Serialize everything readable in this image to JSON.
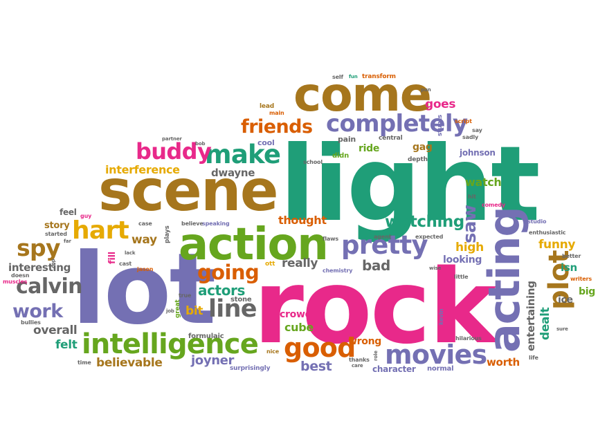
{
  "palette": {
    "green": "#1f9e78",
    "purple": "#7470b3",
    "pink": "#e8298a",
    "lime": "#66a61e",
    "orange": "#d95e02",
    "gold": "#e6aa03",
    "brown": "#a6761d",
    "gray": "#666666"
  },
  "words": [
    {
      "text": "light",
      "color": "#1f9e78"
    },
    {
      "text": "lot",
      "color": "#7470b3"
    },
    {
      "text": "rock",
      "color": "#e8298a"
    },
    {
      "text": "scene",
      "color": "#a6761d"
    },
    {
      "text": "come",
      "color": "#a6761d"
    },
    {
      "text": "action",
      "color": "#66a61e"
    },
    {
      "text": "acting",
      "color": "#7470b3"
    },
    {
      "text": "intelligence",
      "color": "#66a61e"
    },
    {
      "text": "pretty",
      "color": "#7470b3"
    },
    {
      "text": "completely",
      "color": "#7470b3"
    },
    {
      "text": "movies",
      "color": "#7470b3"
    },
    {
      "text": "make",
      "color": "#1f9e78"
    },
    {
      "text": "hart",
      "color": "#e6aa03"
    },
    {
      "text": "plot",
      "color": "#a6761d"
    },
    {
      "text": "line",
      "color": "#666666"
    },
    {
      "text": "good",
      "color": "#d95e02"
    },
    {
      "text": "buddy",
      "color": "#e8298a"
    },
    {
      "text": "friends",
      "color": "#d95e02"
    },
    {
      "text": "spy",
      "color": "#a6761d"
    },
    {
      "text": "calvin",
      "color": "#666666"
    },
    {
      "text": "going",
      "color": "#d95e02"
    },
    {
      "text": "watching",
      "color": "#1f9e78"
    },
    {
      "text": "work",
      "color": "#7470b3"
    },
    {
      "text": "saw",
      "color": "#7470b3"
    },
    {
      "text": "actors",
      "color": "#1f9e78"
    },
    {
      "text": "really",
      "color": "#666666"
    },
    {
      "text": "bad",
      "color": "#666666"
    },
    {
      "text": "interference",
      "color": "#e6aa03"
    },
    {
      "text": "dwayne",
      "color": "#666666"
    },
    {
      "text": "thought",
      "color": "#d95e02"
    },
    {
      "text": "believable",
      "color": "#a6761d"
    },
    {
      "text": "joyner",
      "color": "#7470b3"
    },
    {
      "text": "best",
      "color": "#7470b3"
    },
    {
      "text": "cube",
      "color": "#66a61e"
    },
    {
      "text": "crowd",
      "color": "#e8298a"
    },
    {
      "text": "bit",
      "color": "#e6aa03"
    },
    {
      "text": "felt",
      "color": "#1f9e78"
    },
    {
      "text": "overall",
      "color": "#666666"
    },
    {
      "text": "interesting",
      "color": "#666666"
    },
    {
      "text": "way",
      "color": "#a6761d"
    },
    {
      "text": "fill",
      "color": "#e8298a"
    },
    {
      "text": "story",
      "color": "#a6761d"
    },
    {
      "text": "feel",
      "color": "#666666"
    },
    {
      "text": "goes",
      "color": "#e8298a"
    },
    {
      "text": "watch",
      "color": "#66a61e"
    },
    {
      "text": "high",
      "color": "#e6aa03"
    },
    {
      "text": "looking",
      "color": "#7470b3"
    },
    {
      "text": "funny",
      "color": "#e6aa03"
    },
    {
      "text": "isn",
      "color": "#1f9e78"
    },
    {
      "text": "big",
      "color": "#66a61e"
    },
    {
      "text": "ice",
      "color": "#666666"
    },
    {
      "text": "dealt",
      "color": "#1f9e78"
    },
    {
      "text": "entertaining",
      "color": "#666666"
    },
    {
      "text": "worth",
      "color": "#d95e02"
    },
    {
      "text": "character",
      "color": "#7470b3"
    },
    {
      "text": "wrong",
      "color": "#d95e02"
    },
    {
      "text": "ride",
      "color": "#66a61e"
    },
    {
      "text": "gag",
      "color": "#a6761d"
    },
    {
      "text": "johnson",
      "color": "#7470b3"
    },
    {
      "text": "formulaic",
      "color": "#666666"
    },
    {
      "text": "stone",
      "color": "#666666"
    },
    {
      "text": "surprisingly",
      "color": "#7470b3"
    },
    {
      "text": "normal",
      "color": "#7470b3"
    },
    {
      "text": "cool",
      "color": "#7470b3"
    },
    {
      "text": "pain",
      "color": "#666666"
    },
    {
      "text": "didn",
      "color": "#66a61e"
    },
    {
      "text": "central",
      "color": "#666666"
    },
    {
      "text": "depth",
      "color": "#666666"
    },
    {
      "text": "school",
      "color": "#666666"
    },
    {
      "text": "lead",
      "color": "#a6761d"
    },
    {
      "text": "main",
      "color": "#d95e02"
    },
    {
      "text": "self",
      "color": "#666666"
    },
    {
      "text": "fun",
      "color": "#1f9e78"
    },
    {
      "text": "transform",
      "color": "#d95e02"
    },
    {
      "text": "pun",
      "color": "#666666"
    },
    {
      "text": "stunts",
      "color": "#7470b3"
    },
    {
      "text": "script",
      "color": "#d95e02"
    },
    {
      "text": "say",
      "color": "#666666"
    },
    {
      "text": "sadly",
      "color": "#666666"
    },
    {
      "text": "hit",
      "color": "#666666"
    },
    {
      "text": "comedy",
      "color": "#e8298a"
    },
    {
      "text": "writers",
      "color": "#d95e02"
    },
    {
      "text": "better",
      "color": "#666666"
    },
    {
      "text": "studio",
      "color": "#7470b3"
    },
    {
      "text": "enthusiastic",
      "color": "#666666"
    },
    {
      "text": "little",
      "color": "#666666"
    },
    {
      "text": "hilarious",
      "color": "#666666"
    },
    {
      "text": "sure",
      "color": "#666666"
    },
    {
      "text": "life",
      "color": "#666666"
    },
    {
      "text": "kevin",
      "color": "#7470b3"
    },
    {
      "text": "wise",
      "color": "#666666"
    },
    {
      "text": "expected",
      "color": "#666666"
    },
    {
      "text": "agent",
      "color": "#666666"
    },
    {
      "text": "chemistry",
      "color": "#7470b3"
    },
    {
      "text": "flaws",
      "color": "#666666"
    },
    {
      "text": "ott",
      "color": "#e6aa03"
    },
    {
      "text": "thanks",
      "color": "#666666"
    },
    {
      "text": "care",
      "color": "#666666"
    },
    {
      "text": "role",
      "color": "#666666"
    },
    {
      "text": "nice",
      "color": "#a6761d"
    },
    {
      "text": "great",
      "color": "#66a61e"
    },
    {
      "text": "true",
      "color": "#666666"
    },
    {
      "text": "job",
      "color": "#666666"
    },
    {
      "text": "jason",
      "color": "#d95e02"
    },
    {
      "text": "cast",
      "color": "#666666"
    },
    {
      "text": "plays",
      "color": "#666666"
    },
    {
      "text": "believe",
      "color": "#666666"
    },
    {
      "text": "speaking",
      "color": "#7470b3"
    },
    {
      "text": "case",
      "color": "#666666"
    },
    {
      "text": "lack",
      "color": "#666666"
    },
    {
      "text": "partner",
      "color": "#666666"
    },
    {
      "text": "bob",
      "color": "#666666"
    },
    {
      "text": "guy",
      "color": "#e8298a"
    },
    {
      "text": "started",
      "color": "#666666"
    },
    {
      "text": "far",
      "color": "#666666"
    },
    {
      "text": "cop",
      "color": "#666666"
    },
    {
      "text": "doesn",
      "color": "#666666"
    },
    {
      "text": "muscles",
      "color": "#e8298a"
    },
    {
      "text": "bullies",
      "color": "#666666"
    },
    {
      "text": "time",
      "color": "#666666"
    }
  ]
}
